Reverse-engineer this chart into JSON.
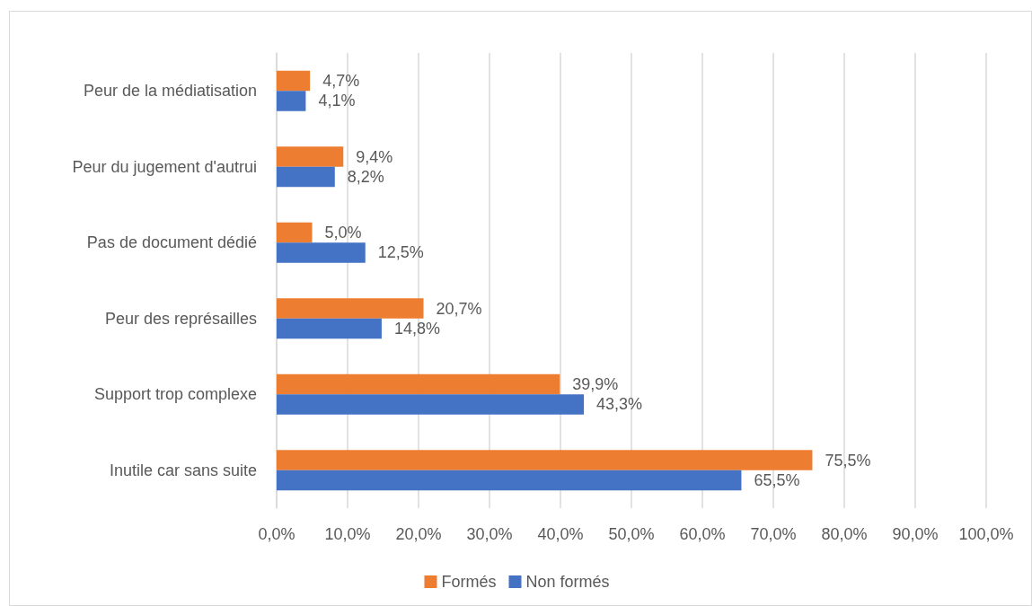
{
  "chart_data": {
    "type": "bar",
    "orientation": "horizontal",
    "categories": [
      "Peur de la médiatisation",
      "Peur du jugement d'autrui",
      "Pas de document dédié",
      "Peur des représailles",
      "Support trop complexe",
      "Inutile car sans suite"
    ],
    "series": [
      {
        "name": "Formés",
        "color": "#ed7d31",
        "values": [
          4.7,
          9.4,
          5.0,
          20.7,
          39.9,
          75.5
        ],
        "value_labels": [
          "4,7%",
          "9,4%",
          "5,0%",
          "20,7%",
          "39,9%",
          "75,5%"
        ]
      },
      {
        "name": "Non formés",
        "color": "#4472c4",
        "values": [
          4.1,
          8.2,
          12.5,
          14.8,
          43.3,
          65.5
        ],
        "value_labels": [
          "4,1%",
          "8,2%",
          "12,5%",
          "14,8%",
          "43,3%",
          "65,5%"
        ]
      }
    ],
    "xlim": [
      0,
      100
    ],
    "xticks": [
      {
        "value": 0,
        "label": "0,0%"
      },
      {
        "value": 10,
        "label": "10,0%"
      },
      {
        "value": 20,
        "label": "20,0%"
      },
      {
        "value": 30,
        "label": "30,0%"
      },
      {
        "value": 40,
        "label": "40,0%"
      },
      {
        "value": 50,
        "label": "50,0%"
      },
      {
        "value": 60,
        "label": "60,0%"
      },
      {
        "value": 70,
        "label": "70,0%"
      },
      {
        "value": 80,
        "label": "80,0%"
      },
      {
        "value": 90,
        "label": "90,0%"
      },
      {
        "value": 100,
        "label": "100,0%"
      }
    ],
    "grid": "x",
    "legend": "bottom"
  }
}
